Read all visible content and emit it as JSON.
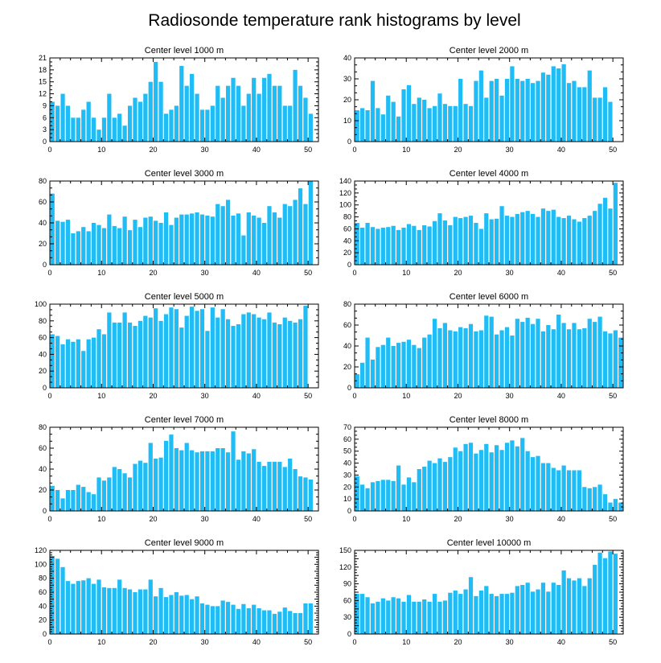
{
  "figure": {
    "title": "Radiosonde temperature rank histograms by level",
    "bar_color": "#1fbcf5",
    "axis_color": "#000000"
  },
  "chart_data": [
    {
      "type": "bar",
      "title": "Center level 1000 m",
      "xlim": [
        0,
        52
      ],
      "ylim": [
        0,
        21
      ],
      "xticks": [
        0,
        10,
        20,
        30,
        40,
        50
      ],
      "yticks": [
        0,
        3,
        6,
        9,
        12,
        15,
        18,
        21
      ],
      "values": [
        10,
        9,
        12,
        9,
        6,
        6,
        8,
        10,
        6,
        3,
        6,
        12,
        6,
        7,
        4,
        9,
        11,
        10,
        12,
        15,
        20,
        15,
        7,
        8,
        9,
        19,
        14,
        17,
        12,
        8,
        8,
        9,
        14,
        11,
        14,
        16,
        14,
        9,
        12,
        16,
        12,
        16,
        17,
        14,
        14,
        9,
        9,
        18,
        14,
        11,
        7
      ]
    },
    {
      "type": "bar",
      "title": "Center level 2000 m",
      "xlim": [
        0,
        52
      ],
      "ylim": [
        0,
        40
      ],
      "xticks": [
        0,
        10,
        20,
        30,
        40,
        50
      ],
      "yticks": [
        0,
        10,
        20,
        30,
        40
      ],
      "values": [
        15,
        16,
        15,
        29,
        16,
        13,
        22,
        19,
        12,
        25,
        27,
        18,
        21,
        20,
        16,
        17,
        23,
        18,
        17,
        17,
        30,
        18,
        17,
        29,
        34,
        21,
        29,
        30,
        22,
        30,
        36,
        30,
        29,
        30,
        28,
        29,
        33,
        32,
        36,
        35,
        37,
        28,
        29,
        26,
        26,
        34,
        21,
        21,
        26,
        19
      ]
    },
    {
      "type": "bar",
      "title": "Center level 3000 m",
      "xlim": [
        0,
        52
      ],
      "ylim": [
        0,
        80
      ],
      "xticks": [
        0,
        10,
        20,
        30,
        40,
        50
      ],
      "yticks": [
        0,
        20,
        40,
        60,
        80
      ],
      "values": [
        68,
        42,
        41,
        43,
        30,
        32,
        36,
        32,
        40,
        38,
        35,
        48,
        37,
        35,
        46,
        33,
        43,
        36,
        45,
        46,
        42,
        40,
        50,
        38,
        45,
        48,
        48,
        49,
        50,
        48,
        47,
        46,
        58,
        56,
        62,
        47,
        49,
        28,
        50,
        47,
        45,
        40,
        56,
        50,
        45,
        58,
        56,
        62,
        73,
        58,
        80
      ]
    },
    {
      "type": "bar",
      "title": "Center level 4000 m",
      "xlim": [
        0,
        52
      ],
      "ylim": [
        0,
        140
      ],
      "xticks": [
        0,
        10,
        20,
        30,
        40,
        50
      ],
      "yticks": [
        0,
        20,
        40,
        60,
        80,
        100,
        120,
        140
      ],
      "values": [
        70,
        62,
        70,
        63,
        60,
        62,
        63,
        65,
        58,
        62,
        68,
        65,
        58,
        66,
        64,
        73,
        86,
        74,
        66,
        80,
        78,
        80,
        82,
        70,
        60,
        86,
        76,
        77,
        98,
        82,
        80,
        85,
        88,
        90,
        85,
        80,
        94,
        90,
        92,
        80,
        78,
        82,
        76,
        72,
        78,
        82,
        90,
        102,
        112,
        94,
        137
      ]
    },
    {
      "type": "bar",
      "title": "Center level 5000 m",
      "xlim": [
        0,
        52
      ],
      "ylim": [
        0,
        100
      ],
      "xticks": [
        0,
        10,
        20,
        30,
        40,
        50
      ],
      "yticks": [
        0,
        20,
        40,
        60,
        80,
        100
      ],
      "values": [
        64,
        62,
        52,
        58,
        55,
        58,
        44,
        58,
        60,
        70,
        64,
        90,
        78,
        78,
        90,
        78,
        74,
        80,
        86,
        84,
        95,
        80,
        88,
        96,
        94,
        72,
        86,
        97,
        92,
        94,
        68,
        96,
        84,
        94,
        82,
        74,
        76,
        88,
        90,
        88,
        84,
        82,
        90,
        78,
        76,
        84,
        80,
        78,
        82,
        98
      ]
    },
    {
      "type": "bar",
      "title": "Center level 6000 m",
      "xlim": [
        0,
        52
      ],
      "ylim": [
        0,
        80
      ],
      "xticks": [
        0,
        10,
        20,
        30,
        40,
        50
      ],
      "yticks": [
        0,
        20,
        40,
        60,
        80
      ],
      "values": [
        13,
        24,
        48,
        27,
        39,
        41,
        48,
        40,
        43,
        44,
        46,
        41,
        38,
        48,
        51,
        66,
        57,
        62,
        55,
        54,
        58,
        57,
        61,
        54,
        55,
        69,
        68,
        51,
        55,
        58,
        50,
        66,
        63,
        67,
        61,
        66,
        54,
        60,
        56,
        70,
        62,
        56,
        62,
        56,
        57,
        66,
        63,
        68,
        54,
        52,
        55,
        48
      ]
    },
    {
      "type": "bar",
      "title": "Center level 7000 m",
      "xlim": [
        0,
        52
      ],
      "ylim": [
        0,
        80
      ],
      "xticks": [
        0,
        10,
        20,
        30,
        40,
        50
      ],
      "yticks": [
        0,
        20,
        40,
        60,
        80
      ],
      "values": [
        24,
        20,
        12,
        20,
        20,
        25,
        23,
        18,
        16,
        32,
        29,
        32,
        42,
        40,
        36,
        32,
        45,
        48,
        46,
        65,
        50,
        51,
        67,
        73,
        60,
        58,
        65,
        58,
        56,
        57,
        57,
        57,
        60,
        60,
        56,
        76,
        49,
        57,
        55,
        59,
        47,
        43,
        47,
        47,
        47,
        42,
        50,
        40,
        33,
        32,
        30
      ]
    },
    {
      "type": "bar",
      "title": "Center level 8000 m",
      "xlim": [
        0,
        52
      ],
      "ylim": [
        0,
        70
      ],
      "xticks": [
        0,
        10,
        20,
        30,
        40,
        50
      ],
      "yticks": [
        0,
        10,
        20,
        30,
        40,
        50,
        60,
        70
      ],
      "values": [
        29,
        22,
        19,
        24,
        25,
        26,
        26,
        25,
        38,
        22,
        28,
        24,
        35,
        37,
        42,
        40,
        44,
        41,
        45,
        53,
        50,
        56,
        57,
        48,
        51,
        56,
        49,
        55,
        51,
        57,
        59,
        54,
        61,
        50,
        45,
        46,
        40,
        40,
        36,
        34,
        38,
        34,
        34,
        34,
        20,
        19,
        20,
        22,
        14,
        7,
        10,
        7
      ]
    },
    {
      "type": "bar",
      "title": "Center level 9000 m",
      "xlim": [
        0,
        52
      ],
      "ylim": [
        0,
        120
      ],
      "xticks": [
        0,
        10,
        20,
        30,
        40,
        50
      ],
      "yticks": [
        0,
        10,
        20,
        30,
        40,
        50,
        60,
        70,
        80,
        90,
        100,
        110,
        120
      ],
      "ytick_labels": [
        0,
        20,
        40,
        60,
        80,
        100,
        120
      ],
      "values": [
        112,
        108,
        96,
        76,
        72,
        76,
        77,
        80,
        72,
        78,
        67,
        66,
        66,
        78,
        66,
        64,
        60,
        64,
        64,
        78,
        54,
        66,
        53,
        56,
        60,
        55,
        56,
        50,
        54,
        44,
        42,
        40,
        40,
        48,
        46,
        42,
        36,
        43,
        37,
        42,
        37,
        34,
        34,
        29,
        32,
        38,
        33,
        30,
        30,
        44,
        44
      ]
    },
    {
      "type": "bar",
      "title": "Center level 10000 m",
      "xlim": [
        0,
        52
      ],
      "ylim": [
        0,
        150
      ],
      "xticks": [
        0,
        10,
        20,
        30,
        40,
        50
      ],
      "yticks": [
        0,
        15,
        30,
        45,
        60,
        75,
        90,
        105,
        120,
        135,
        150
      ],
      "ytick_labels": [
        0,
        30,
        60,
        90,
        120,
        150
      ],
      "values": [
        72,
        72,
        66,
        55,
        58,
        64,
        60,
        66,
        64,
        58,
        70,
        58,
        58,
        62,
        58,
        72,
        58,
        60,
        74,
        78,
        72,
        80,
        102,
        68,
        78,
        86,
        72,
        68,
        72,
        72,
        74,
        86,
        88,
        92,
        76,
        80,
        92,
        76,
        92,
        88,
        114,
        100,
        96,
        100,
        86,
        100,
        124,
        146,
        136,
        148,
        144
      ]
    }
  ]
}
